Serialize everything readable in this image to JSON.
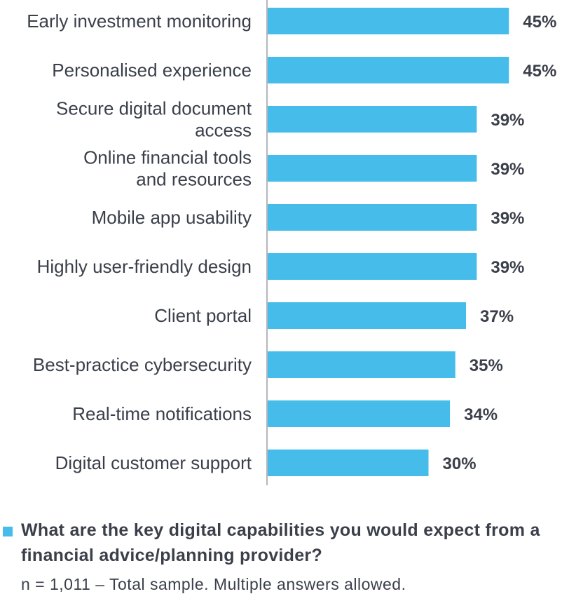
{
  "chart_data": {
    "type": "bar",
    "orientation": "horizontal",
    "categories": [
      "Early investment monitoring",
      "Personalised experience",
      "Secure digital document access",
      "Online financial tools and resources",
      "Mobile app usability",
      "Highly user-friendly design",
      "Client portal",
      "Best-practice cybersecurity",
      "Real-time notifications",
      "Digital customer support"
    ],
    "category_lines": [
      [
        "Early investment monitoring"
      ],
      [
        "Personalised experience"
      ],
      [
        "Secure digital document",
        "access"
      ],
      [
        "Online financial tools",
        "and resources"
      ],
      [
        "Mobile app usability"
      ],
      [
        "Highly user-friendly design"
      ],
      [
        "Client portal"
      ],
      [
        "Best-practice cybersecurity"
      ],
      [
        "Real-time notifications"
      ],
      [
        "Digital customer support"
      ]
    ],
    "values": [
      45,
      45,
      39,
      39,
      39,
      39,
      37,
      35,
      34,
      30
    ],
    "value_labels": [
      "45%",
      "45%",
      "39%",
      "39%",
      "39%",
      "39%",
      "37%",
      "35%",
      "34%",
      "30%"
    ],
    "unit": "%",
    "xlim": [
      0,
      100
    ],
    "bar_color": "#45bce9",
    "axis_color": "#9a9ea6",
    "grid": false,
    "legend": "bottom-left",
    "title": "What are the key digital capabilities you would expect from a financial advice/planning provider?",
    "note": "n = 1,011 – Total sample. Multiple answers allowed."
  },
  "legend": {
    "marker_color": "#45bce9"
  }
}
